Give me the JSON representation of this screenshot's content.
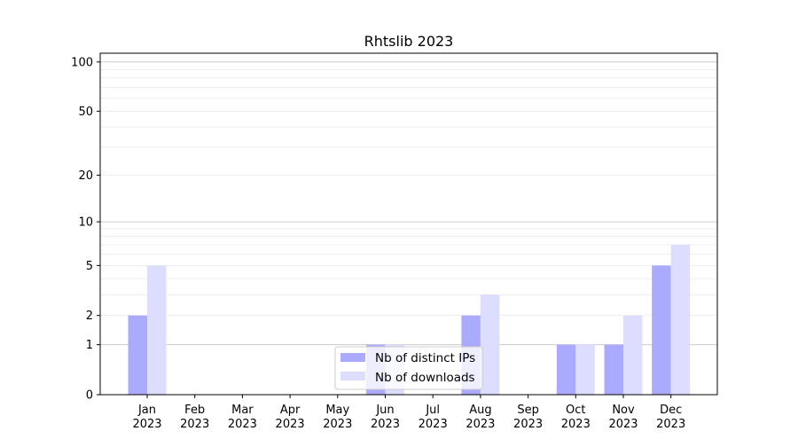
{
  "chart_data": {
    "type": "bar",
    "title": "Rhtslib 2023",
    "xlabel": "",
    "ylabel": "",
    "yscale": "log(1+y)",
    "ylim": [
      0,
      113
    ],
    "yticks": [
      0,
      1,
      2,
      5,
      10,
      20,
      50,
      100
    ],
    "ytick_labels": [
      "0",
      "1",
      "2",
      "5",
      "10",
      "20",
      "50",
      "100"
    ],
    "grid": "horizontal, major and minor",
    "legend_placement": "bottom-center",
    "categories": [
      [
        "Jan",
        "2023"
      ],
      [
        "Feb",
        "2023"
      ],
      [
        "Mar",
        "2023"
      ],
      [
        "Apr",
        "2023"
      ],
      [
        "May",
        "2023"
      ],
      [
        "Jun",
        "2023"
      ],
      [
        "Jul",
        "2023"
      ],
      [
        "Aug",
        "2023"
      ],
      [
        "Sep",
        "2023"
      ],
      [
        "Oct",
        "2023"
      ],
      [
        "Nov",
        "2023"
      ],
      [
        "Dec",
        "2023"
      ]
    ],
    "series": [
      {
        "name": "Nb of distinct IPs",
        "color": "#aaaaff",
        "values": [
          2,
          0,
          0,
          0,
          0,
          1,
          0,
          2,
          0,
          1,
          1,
          5
        ]
      },
      {
        "name": "Nb of downloads",
        "color": "#ddddff",
        "values": [
          5,
          0,
          0,
          0,
          0,
          1,
          0,
          3,
          0,
          1,
          2,
          7
        ]
      }
    ]
  }
}
